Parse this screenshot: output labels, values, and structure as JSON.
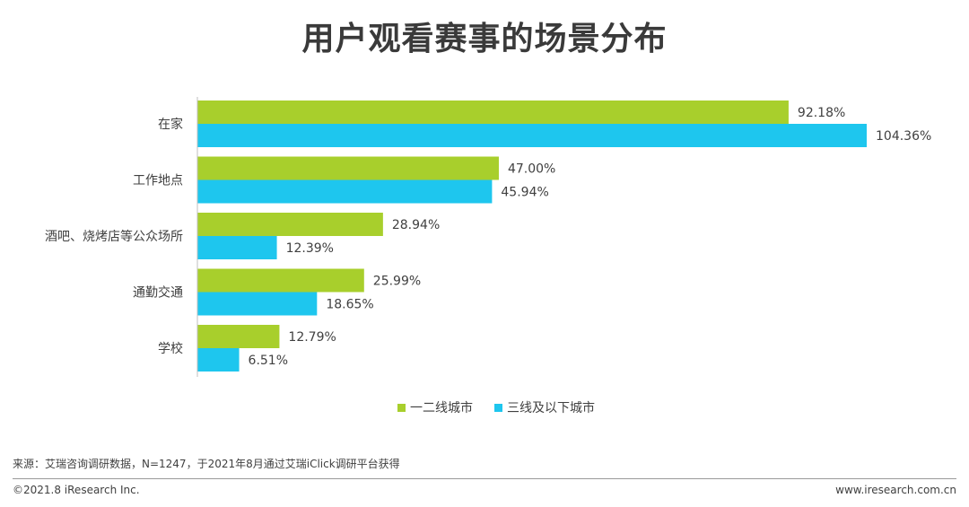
{
  "title": "用户观看赛事的场景分布",
  "colors": {
    "series1": "#a8cf2c",
    "series2": "#1ec6ee"
  },
  "legend": {
    "series1": "一二线城市",
    "series2": "三线及以下城市"
  },
  "chart_data": {
    "type": "bar",
    "orientation": "horizontal",
    "categories": [
      "在家",
      "工作地点",
      "酒吧、烧烤店等公众场所",
      "通勤交通",
      "学校"
    ],
    "series": [
      {
        "name": "一二线城市",
        "values": [
          92.18,
          47.0,
          28.94,
          25.99,
          12.79
        ],
        "labels": [
          "92.18%",
          "47.00%",
          "28.94%",
          "25.99%",
          "12.79%"
        ]
      },
      {
        "name": "三线及以下城市",
        "values": [
          104.36,
          45.94,
          12.39,
          18.65,
          6.51
        ],
        "labels": [
          "104.36%",
          "45.94%",
          "12.39%",
          "18.65%",
          "6.51%"
        ]
      }
    ],
    "xlim": [
      0,
      104.36
    ],
    "legend_position": "bottom-center",
    "grid": false
  },
  "source": "来源：艾瑞咨询调研数据，N=1247，于2021年8月通过艾瑞iClick调研平台获得",
  "footer": {
    "copyright": "©2021.8 iResearch Inc.",
    "website": "www.iresearch.com.cn"
  }
}
